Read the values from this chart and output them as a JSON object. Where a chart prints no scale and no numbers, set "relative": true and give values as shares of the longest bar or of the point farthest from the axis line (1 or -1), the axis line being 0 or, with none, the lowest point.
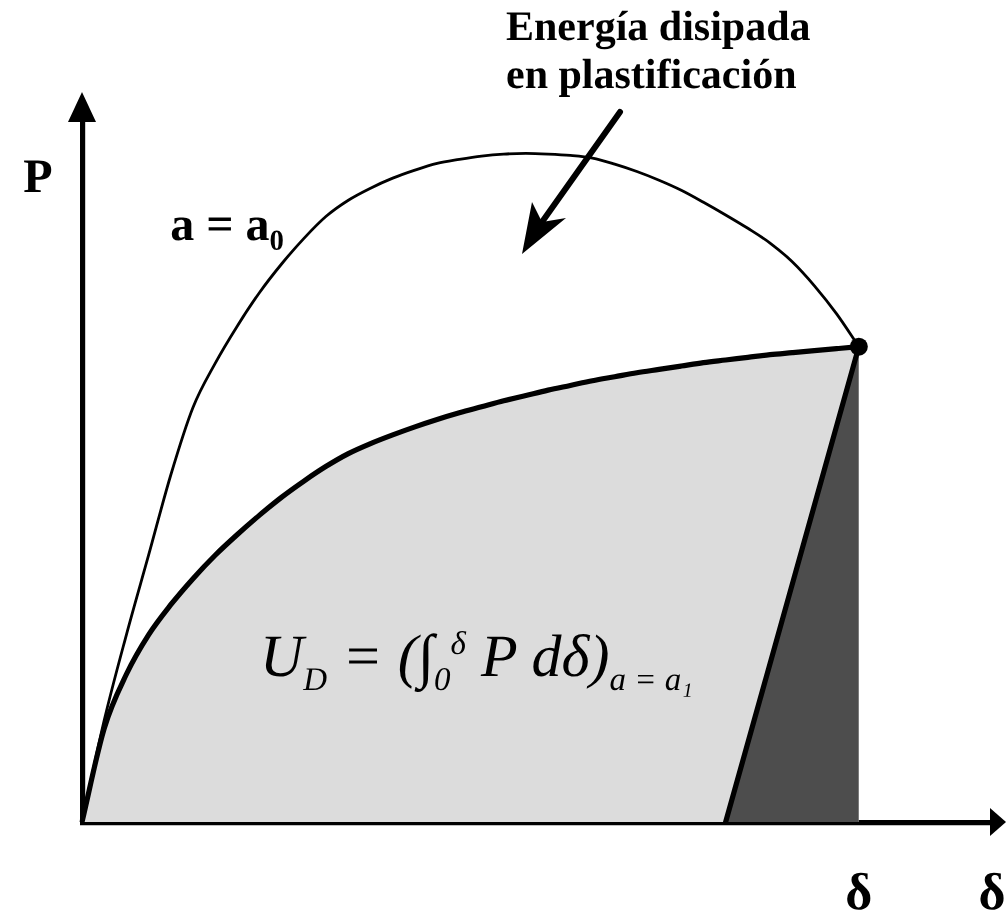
{
  "chart_data": {
    "type": "line",
    "relative": true,
    "ylabel": "P",
    "legend": false,
    "grid": false,
    "tick_labels": "x",
    "categories": [
      null,
      null,
      null,
      null,
      null,
      null,
      null,
      null,
      null,
      null,
      null,
      null,
      null,
      null,
      null,
      null,
      null,
      null,
      null,
      null,
      null,
      null,
      null,
      null,
      null,
      null,
      null,
      null,
      null,
      null,
      null,
      null,
      null,
      null,
      null,
      "δ",
      null,
      null,
      null,
      null,
      null,
      "δ"
    ],
    "series": [
      {
        "type": "area",
        "color": "#dcdcdc",
        "values": [
          0,
          0.14,
          0.221,
          0.28,
          0.325,
          0.364,
          0.399,
          0.43,
          0.459,
          0.486,
          0.51,
          0.532,
          0.551,
          0.566,
          0.579,
          0.591,
          0.602,
          0.612,
          0.621,
          0.63,
          0.638,
          0.646,
          0.653,
          0.66,
          0.666,
          0.672,
          0.677,
          0.682,
          0.687,
          0.691,
          0.695,
          0.699,
          0.702,
          0.705,
          0.708,
          0.711,
          null,
          null,
          null,
          null,
          null,
          null
        ]
      },
      {
        "type": "area",
        "color": "#4d4d4d",
        "values": [
          null,
          null,
          null,
          null,
          null,
          null,
          null,
          null,
          null,
          null,
          null,
          null,
          null,
          null,
          null,
          null,
          null,
          null,
          null,
          null,
          null,
          null,
          null,
          null,
          null,
          null,
          null,
          null,
          null,
          0,
          null,
          null,
          null,
          null,
          null,
          0.711,
          null,
          null,
          null,
          null,
          null,
          null
        ]
      },
      {
        "type": "line",
        "name": "a = a₀",
        "color": "#000000",
        "values": [
          0,
          0.152,
          0.28,
          0.399,
          0.519,
          0.62,
          0.686,
          0.742,
          0.792,
          0.835,
          0.873,
          0.906,
          0.93,
          0.948,
          0.963,
          0.975,
          0.985,
          0.991,
          0.996,
          0.999,
          1.0,
          0.999,
          0.997,
          0.993,
          0.984,
          0.973,
          0.96,
          0.945,
          0.927,
          0.908,
          0.888,
          0.866,
          0.838,
          0.802,
          0.76,
          0.711,
          null,
          null,
          null,
          null,
          null,
          null
        ]
      },
      {
        "type": "scatter",
        "color": "#000000",
        "marker": "circle",
        "values": [
          null,
          null,
          null,
          null,
          null,
          null,
          null,
          null,
          null,
          null,
          null,
          null,
          null,
          null,
          null,
          null,
          null,
          null,
          null,
          null,
          null,
          null,
          null,
          null,
          null,
          null,
          null,
          null,
          null,
          null,
          null,
          null,
          null,
          null,
          null,
          0.711,
          null,
          null,
          null,
          null,
          null,
          null
        ]
      }
    ],
    "annotations": [
      "Energía disipada en plastificación",
      "U$_{D}$ = (∫$_{0}$$^{δ}$ P dδ)$_{a = a₁}$"
    ]
  }
}
